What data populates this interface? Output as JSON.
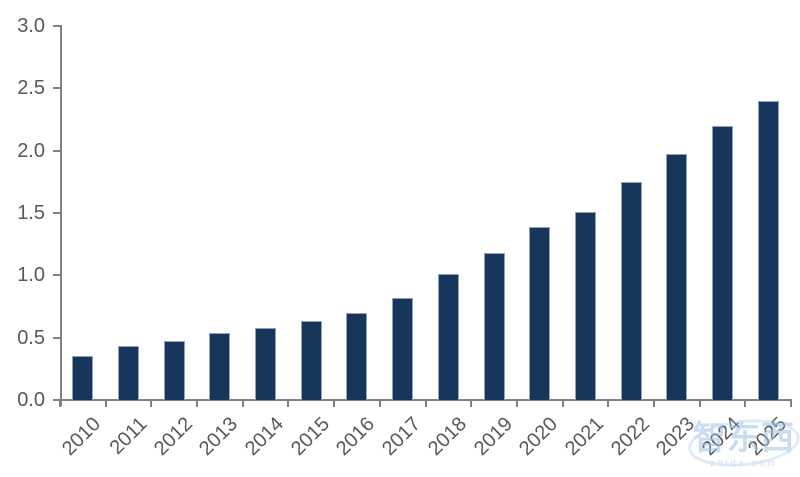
{
  "chart_data": {
    "type": "bar",
    "title": "",
    "xlabel": "",
    "ylabel": "",
    "categories": [
      "2010",
      "2011",
      "2012",
      "2013",
      "2014",
      "2015",
      "2016",
      "2017",
      "2018",
      "2019",
      "2020",
      "2021",
      "2022",
      "2023",
      "2024",
      "2025"
    ],
    "values": [
      0.35,
      0.43,
      0.47,
      0.54,
      0.58,
      0.63,
      0.7,
      0.82,
      1.01,
      1.18,
      1.39,
      1.51,
      1.75,
      1.97,
      2.2,
      2.4
    ],
    "ylim": [
      0.0,
      3.0
    ],
    "ytick_step": 0.5,
    "ytick_labels": [
      "0.0",
      "0.5",
      "1.0",
      "1.5",
      "2.0",
      "2.5",
      "3.0"
    ],
    "grid": false,
    "legend_position": "none",
    "bar_color": "#16365c",
    "axis_color": "#808080",
    "tick_label_color": "#595959"
  },
  "watermark": {
    "logo_text": "智东西",
    "url_text": "zhidx.com",
    "color": "#9dc3e6"
  }
}
